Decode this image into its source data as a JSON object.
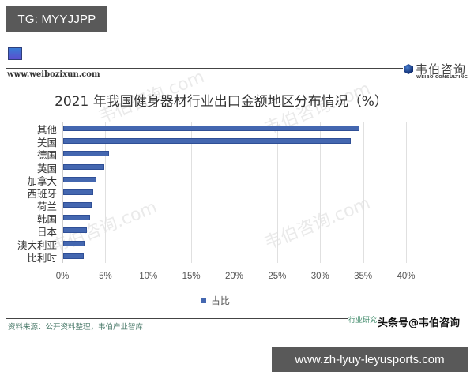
{
  "overlay": {
    "top_banner": "TG: MYYJJPP",
    "bottom_banner": "www.zh-lyuy-leyusports.com"
  },
  "header": {
    "site_url": "www.weibozixun.com",
    "logo_cn": "韦伯咨询",
    "logo_en": "WEIBO CONSULTING"
  },
  "footer": {
    "source": "资料来源：公开资料整理，韦伯产业智库",
    "tag": "行业研究",
    "toutiao": "头条号@韦伯咨询"
  },
  "watermarks": [
    "韦伯咨询.com",
    "韦伯咨询.com",
    "韦伯咨询.com",
    "韦伯咨询.com"
  ],
  "colors": {
    "bar": "#4467b0",
    "banner": "#595959"
  },
  "chart_data": {
    "type": "bar",
    "orientation": "horizontal",
    "title": "2021 年我国健身器材行业出口金额地区分布情况（%）",
    "xlabel": "",
    "ylabel": "",
    "categories": [
      "其他",
      "美国",
      "德国",
      "英国",
      "加拿大",
      "西班牙",
      "荷兰",
      "韩国",
      "日本",
      "澳大利亚",
      "比利时"
    ],
    "series": [
      {
        "name": "占比",
        "values": [
          34.5,
          33.5,
          5.3,
          4.8,
          3.9,
          3.5,
          3.3,
          3.1,
          2.8,
          2.5,
          2.4
        ]
      }
    ],
    "xlim": [
      0,
      40
    ],
    "x_ticks": [
      "0%",
      "5%",
      "10%",
      "15%",
      "20%",
      "25%",
      "30%",
      "35%",
      "40%"
    ],
    "grid": true,
    "legend_position": "bottom"
  }
}
